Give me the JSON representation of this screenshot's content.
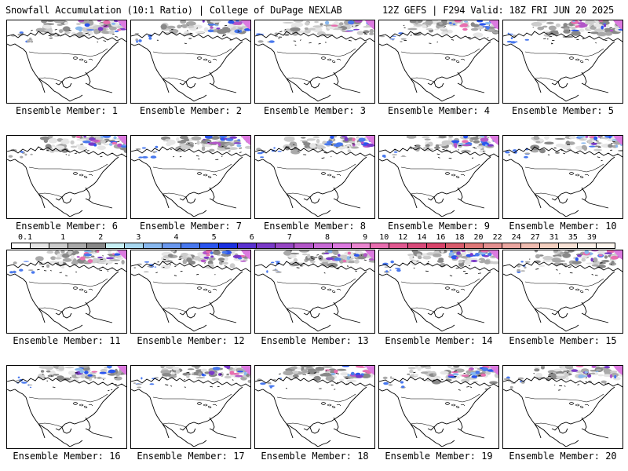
{
  "header": {
    "title": "Snowfall Accumulation (10:1 Ratio) | College of DuPage NEXLAB",
    "run_info": "12Z GEFS | F294 Valid: 18Z FRI JUN 20 2025"
  },
  "panel_label_prefix": "Ensemble Member: ",
  "panels": [
    {
      "member": 1,
      "intensity": 0.8
    },
    {
      "member": 2,
      "intensity": 0.8
    },
    {
      "member": 3,
      "intensity": 0.5
    },
    {
      "member": 4,
      "intensity": 0.7
    },
    {
      "member": 5,
      "intensity": 0.8
    },
    {
      "member": 6,
      "intensity": 0.9
    },
    {
      "member": 7,
      "intensity": 0.7
    },
    {
      "member": 8,
      "intensity": 0.8
    },
    {
      "member": 9,
      "intensity": 0.9
    },
    {
      "member": 10,
      "intensity": 0.7
    },
    {
      "member": 11,
      "intensity": 0.7
    },
    {
      "member": 12,
      "intensity": 0.8
    },
    {
      "member": 13,
      "intensity": 0.6
    },
    {
      "member": 14,
      "intensity": 0.9
    },
    {
      "member": 15,
      "intensity": 0.7
    },
    {
      "member": 16,
      "intensity": 0.7
    },
    {
      "member": 17,
      "intensity": 0.9
    },
    {
      "member": 18,
      "intensity": 0.8
    },
    {
      "member": 19,
      "intensity": 0.8
    },
    {
      "member": 20,
      "intensity": 0.6
    }
  ],
  "colorbar": {
    "labels": [
      "0.1",
      "1",
      "2",
      "3",
      "4",
      "5",
      "6",
      "7",
      "8",
      "9",
      "10",
      "12",
      "14",
      "16",
      "18",
      "20",
      "22",
      "24",
      "27",
      "31",
      "35",
      "39"
    ],
    "colors": [
      "#ffffff",
      "#e6e6e6",
      "#cccccc",
      "#a9a9a9",
      "#888888",
      "#c8f0f5",
      "#a8d8f0",
      "#88b8ee",
      "#6a98ee",
      "#4878ee",
      "#2a55ee",
      "#1a30e0",
      "#5a32d0",
      "#7a3ac8",
      "#9646c4",
      "#b256c8",
      "#c86ad6",
      "#dc7ae0",
      "#ea86d0",
      "#e86eb0",
      "#e05890",
      "#d84a7a",
      "#d8446a",
      "#d85c6c",
      "#de7878",
      "#e49090",
      "#eaa6a0",
      "#efbcb0",
      "#f4d0c0",
      "#f8e2d6",
      "#fcf0e8",
      "#fff8f0"
    ]
  }
}
